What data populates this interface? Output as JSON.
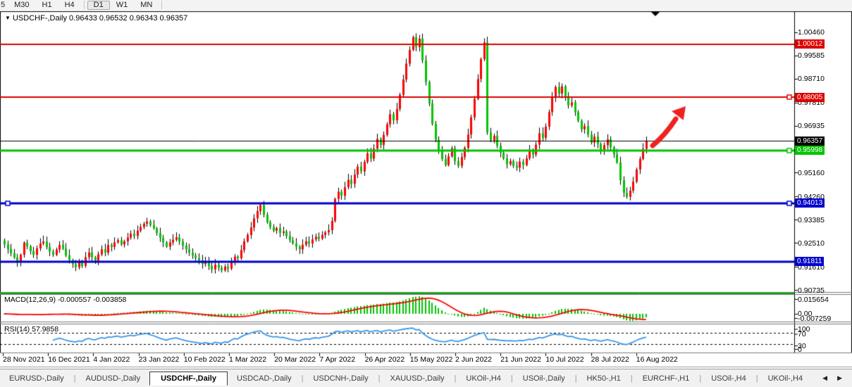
{
  "toolbar": {
    "timeframes": [
      "5",
      "M30",
      "H1",
      "H4",
      "D1",
      "W1",
      "MN"
    ],
    "active": "D1"
  },
  "title": {
    "symbol_label": "USDCHF-,Daily",
    "open": "0.96433",
    "high": "0.96532",
    "low": "0.96343",
    "close": "0.96357"
  },
  "price_axis": {
    "ticks": [
      "1.00460",
      "0.99585",
      "0.98710",
      "0.97810",
      "0.96935",
      "0.96060",
      "0.95160",
      "0.94260",
      "0.93385",
      "0.92510",
      "0.91610",
      "0.90735"
    ],
    "badges": [
      {
        "text": "1.00012",
        "price": 1.00012,
        "color": "#dd0000"
      },
      {
        "text": "0.98005",
        "price": 0.98005,
        "color": "#dd0000"
      },
      {
        "text": "0.96357",
        "price": 0.96357,
        "color": "#000000"
      },
      {
        "text": "0.95998",
        "price": 0.95998,
        "color": "#00c400"
      },
      {
        "text": "0.94013",
        "price": 0.94013,
        "color": "#0000cc"
      },
      {
        "text": "0.91811",
        "price": 0.91811,
        "color": "#0000cc"
      }
    ]
  },
  "indicators": {
    "macd": {
      "label": "MACD(12,26,9)",
      "value_main": "-0.000557",
      "value_signal": "-0.003858",
      "axis_labels": [
        "0.015654",
        "0.00",
        "-0.007259"
      ]
    },
    "rsi": {
      "label": "RSI(14)",
      "value": "57.9858",
      "axis_labels": [
        "100",
        "70",
        "30",
        "0"
      ],
      "levels": [
        70,
        30
      ]
    }
  },
  "tabs": {
    "items": [
      "EURUSD-,Daily",
      "AUDUSD-,Daily",
      "USDCHF-,Daily",
      "USDCAD-,Daily",
      "USDCNH-,Daily",
      "XAUUSD-,Daily",
      "UKOil-,H4",
      "USOil-,Daily",
      "HK50-,H1",
      "EURCHF-,H1",
      "USOil-,H4",
      "UKOil-,H4"
    ],
    "active": "USDCHF-,Daily"
  },
  "chart_data": {
    "type": "candlestick",
    "title": "USDCHF-,Daily",
    "symbol": "USDCHF",
    "timeframe": "Daily",
    "current_ohlc": {
      "open": 0.96433,
      "high": 0.96532,
      "low": 0.96343,
      "close": 0.96357
    },
    "x_tick_labels": [
      "28 Nov 2021",
      "16 Dec 2021",
      "4 Jan 2022",
      "23 Jan 2022",
      "10 Feb 2022",
      "1 Mar 2022",
      "20 Mar 2022",
      "7 Apr 2022",
      "26 Apr 2022",
      "15 May 2022",
      "2 Jun 2022",
      "21 Jun 2022",
      "10 Jul 2022",
      "28 Jul 2022",
      "16 Aug 2022"
    ],
    "y_axis_ticks": [
      1.0046,
      0.99585,
      0.9871,
      0.9781,
      0.96935,
      0.9606,
      0.9516,
      0.9426,
      0.93385,
      0.9251,
      0.9161,
      0.90735
    ],
    "first_open": 0.926,
    "closes": [
      0.9245,
      0.9228,
      0.9212,
      0.9196,
      0.9178,
      0.9206,
      0.9252,
      0.9238,
      0.922,
      0.9206,
      0.923,
      0.9249,
      0.9256,
      0.9235,
      0.9218,
      0.9206,
      0.9226,
      0.9243,
      0.9229,
      0.9204,
      0.9186,
      0.9171,
      0.9159,
      0.9177,
      0.9164,
      0.9197,
      0.9215,
      0.9197,
      0.9184,
      0.9208,
      0.9227,
      0.9214,
      0.9243,
      0.9236,
      0.9253,
      0.9261,
      0.9245,
      0.9257,
      0.9271,
      0.9286,
      0.9277,
      0.9297,
      0.9311,
      0.9323,
      0.9332,
      0.9318,
      0.9306,
      0.9288,
      0.927,
      0.9253,
      0.9237,
      0.9253,
      0.9263,
      0.9272,
      0.9256,
      0.9241,
      0.9227,
      0.9214,
      0.9203,
      0.9193,
      0.9184,
      0.9171,
      0.918,
      0.9164,
      0.9151,
      0.9169,
      0.9157,
      0.9147,
      0.9161,
      0.9154,
      0.9177,
      0.9199,
      0.9193,
      0.9224,
      0.9257,
      0.9281,
      0.9309,
      0.9344,
      0.9371,
      0.9394,
      0.9357,
      0.9329,
      0.9311,
      0.9297,
      0.9307,
      0.9289,
      0.9294,
      0.9277,
      0.9261,
      0.9249,
      0.9237,
      0.9227,
      0.9244,
      0.9257,
      0.9249,
      0.9264,
      0.9274,
      0.9267,
      0.9281,
      0.9291,
      0.9299,
      0.9334,
      0.9417,
      0.9444,
      0.9429,
      0.9461,
      0.9489,
      0.9474,
      0.9509,
      0.9539,
      0.9521,
      0.9557,
      0.9589,
      0.9569,
      0.9607,
      0.9644,
      0.9621,
      0.9659,
      0.9699,
      0.9737,
      0.9714,
      0.9757,
      0.981,
      0.9868,
      0.9928,
      0.998,
      1.0028,
      0.999,
      1.0022,
      0.994,
      0.9858,
      0.9778,
      0.97,
      0.964,
      0.96,
      0.9568,
      0.9545,
      0.9578,
      0.9608,
      0.956,
      0.9542,
      0.9575,
      0.961,
      0.966,
      0.9725,
      0.9795,
      0.987,
      0.9945,
      1.0008,
      0.9668,
      0.9638,
      0.9655,
      0.9618,
      0.9592,
      0.957,
      0.9548,
      0.956,
      0.9542,
      0.9535,
      0.9558,
      0.9545,
      0.957,
      0.96,
      0.9585,
      0.9622,
      0.9665,
      0.9648,
      0.969,
      0.9745,
      0.98,
      0.984,
      0.9815,
      0.9842,
      0.9805,
      0.977,
      0.9782,
      0.9745,
      0.9712,
      0.968,
      0.9692,
      0.966,
      0.963,
      0.9652,
      0.9625,
      0.9598,
      0.962,
      0.9642,
      0.9612,
      0.9585,
      0.9555,
      0.9488,
      0.944,
      0.9425,
      0.9448,
      0.9482,
      0.9528,
      0.9568,
      0.9606,
      0.9636
    ],
    "horizontal_lines": [
      {
        "price": 1.00012,
        "color": "#dd0000",
        "width": 2,
        "handles": []
      },
      {
        "price": 0.98005,
        "color": "#dd0000",
        "width": 2,
        "handles": [
          "right"
        ]
      },
      {
        "price": 0.96357,
        "color": "#000000",
        "width": 1,
        "handles": []
      },
      {
        "price": 0.95998,
        "color": "#00c400",
        "width": 3,
        "handles": [
          "right"
        ]
      },
      {
        "price": 0.94013,
        "color": "#0000cc",
        "width": 3,
        "handles": [
          "left",
          "right"
        ]
      },
      {
        "price": 0.91811,
        "color": "#0000cc",
        "width": 3,
        "handles": []
      },
      {
        "price": 0.906,
        "color": "#00b400",
        "width": 2,
        "handles": []
      }
    ],
    "annotations": [
      {
        "type": "arrow",
        "direction": "up-right",
        "color": "#ee2222"
      },
      {
        "type": "last-bar-marker",
        "shape": "triangle-down",
        "color": "#000000"
      }
    ],
    "colors": {
      "bull": "#fe0000",
      "bear": "#00c400",
      "wick": "#000000",
      "macd_hist": "#00c400",
      "macd_signal": "#ff0000",
      "rsi_line": "#3a97e8"
    },
    "indicator_params": {
      "macd": [
        12,
        26,
        9
      ],
      "rsi": [
        14
      ]
    }
  }
}
